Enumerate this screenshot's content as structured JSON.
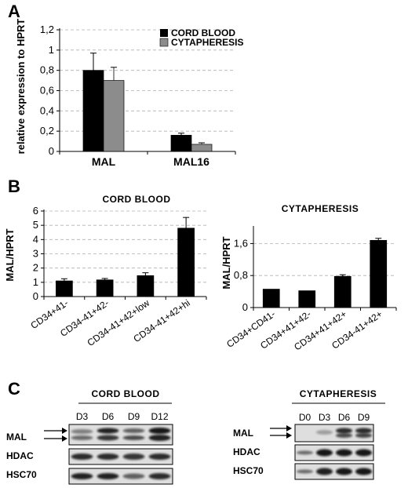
{
  "panels": {
    "a": "A",
    "b": "B",
    "c": "C"
  },
  "chart_data": [
    {
      "type": "bar",
      "panel": "A",
      "ylabel": "relative expression to HPRT",
      "categories": [
        "MAL",
        "MAL16"
      ],
      "series": [
        {
          "name": "CORD BLOOD",
          "values": [
            0.8,
            0.16
          ],
          "errors": [
            0.17,
            0.02
          ],
          "color": "#000000"
        },
        {
          "name": "CYTAPHERESIS",
          "values": [
            0.7,
            0.07
          ],
          "errors": [
            0.13,
            0.015
          ],
          "color": "#8c8c8c"
        }
      ],
      "yticks": [
        "0",
        "0,2",
        "0,4",
        "0,6",
        "0,8",
        "1",
        "1,2"
      ],
      "ylim": [
        0,
        1.2
      ],
      "grid": true,
      "legend_position": "top-right"
    },
    {
      "type": "bar",
      "panel": "B",
      "title": "CORD  BLOOD",
      "ylabel": "MAL/HPRT",
      "categories": [
        "CD34+41-",
        "CD34-41+42-",
        "CD34-41+42+low",
        "CD34-41+42+hi"
      ],
      "values": [
        1.1,
        1.17,
        1.47,
        4.8
      ],
      "errors": [
        0.15,
        0.1,
        0.2,
        0.75
      ],
      "yticks": [
        "0",
        "1",
        "2",
        "3",
        "4",
        "5",
        "6"
      ],
      "ylim": [
        0,
        6
      ],
      "grid": true
    },
    {
      "type": "bar",
      "panel": "B",
      "title": "CYTAPHERESIS",
      "ylabel": "MAL/HPRT",
      "categories": [
        "CD34+CD41-",
        "CD34+41+42-",
        "CD34+41+42+",
        "CD34-41+42+"
      ],
      "values": [
        0.46,
        0.42,
        0.78,
        1.68
      ],
      "errors": [
        0.0,
        0.0,
        0.04,
        0.05
      ],
      "yticks": [
        "0",
        "0,8",
        "1,6"
      ],
      "ylim": [
        0,
        2.0
      ],
      "grid": true
    }
  ],
  "blots": {
    "cord": {
      "title": "CORD BLOOD",
      "lanes": [
        "D3",
        "D6",
        "D9",
        "D12"
      ],
      "rows": [
        "MAL",
        "HDAC",
        "HSC70"
      ]
    },
    "cyta": {
      "title": "CYTAPHERESIS",
      "lanes": [
        "D0",
        "D3",
        "D6",
        "D9"
      ],
      "rows": [
        "MAL",
        "HDAC",
        "HSC70"
      ]
    }
  },
  "colors": {
    "grid": "#b0b0b0",
    "bar_dark": "#000000",
    "bar_gray": "#8c8c8c",
    "blot_bg": "#d8d8d8"
  }
}
